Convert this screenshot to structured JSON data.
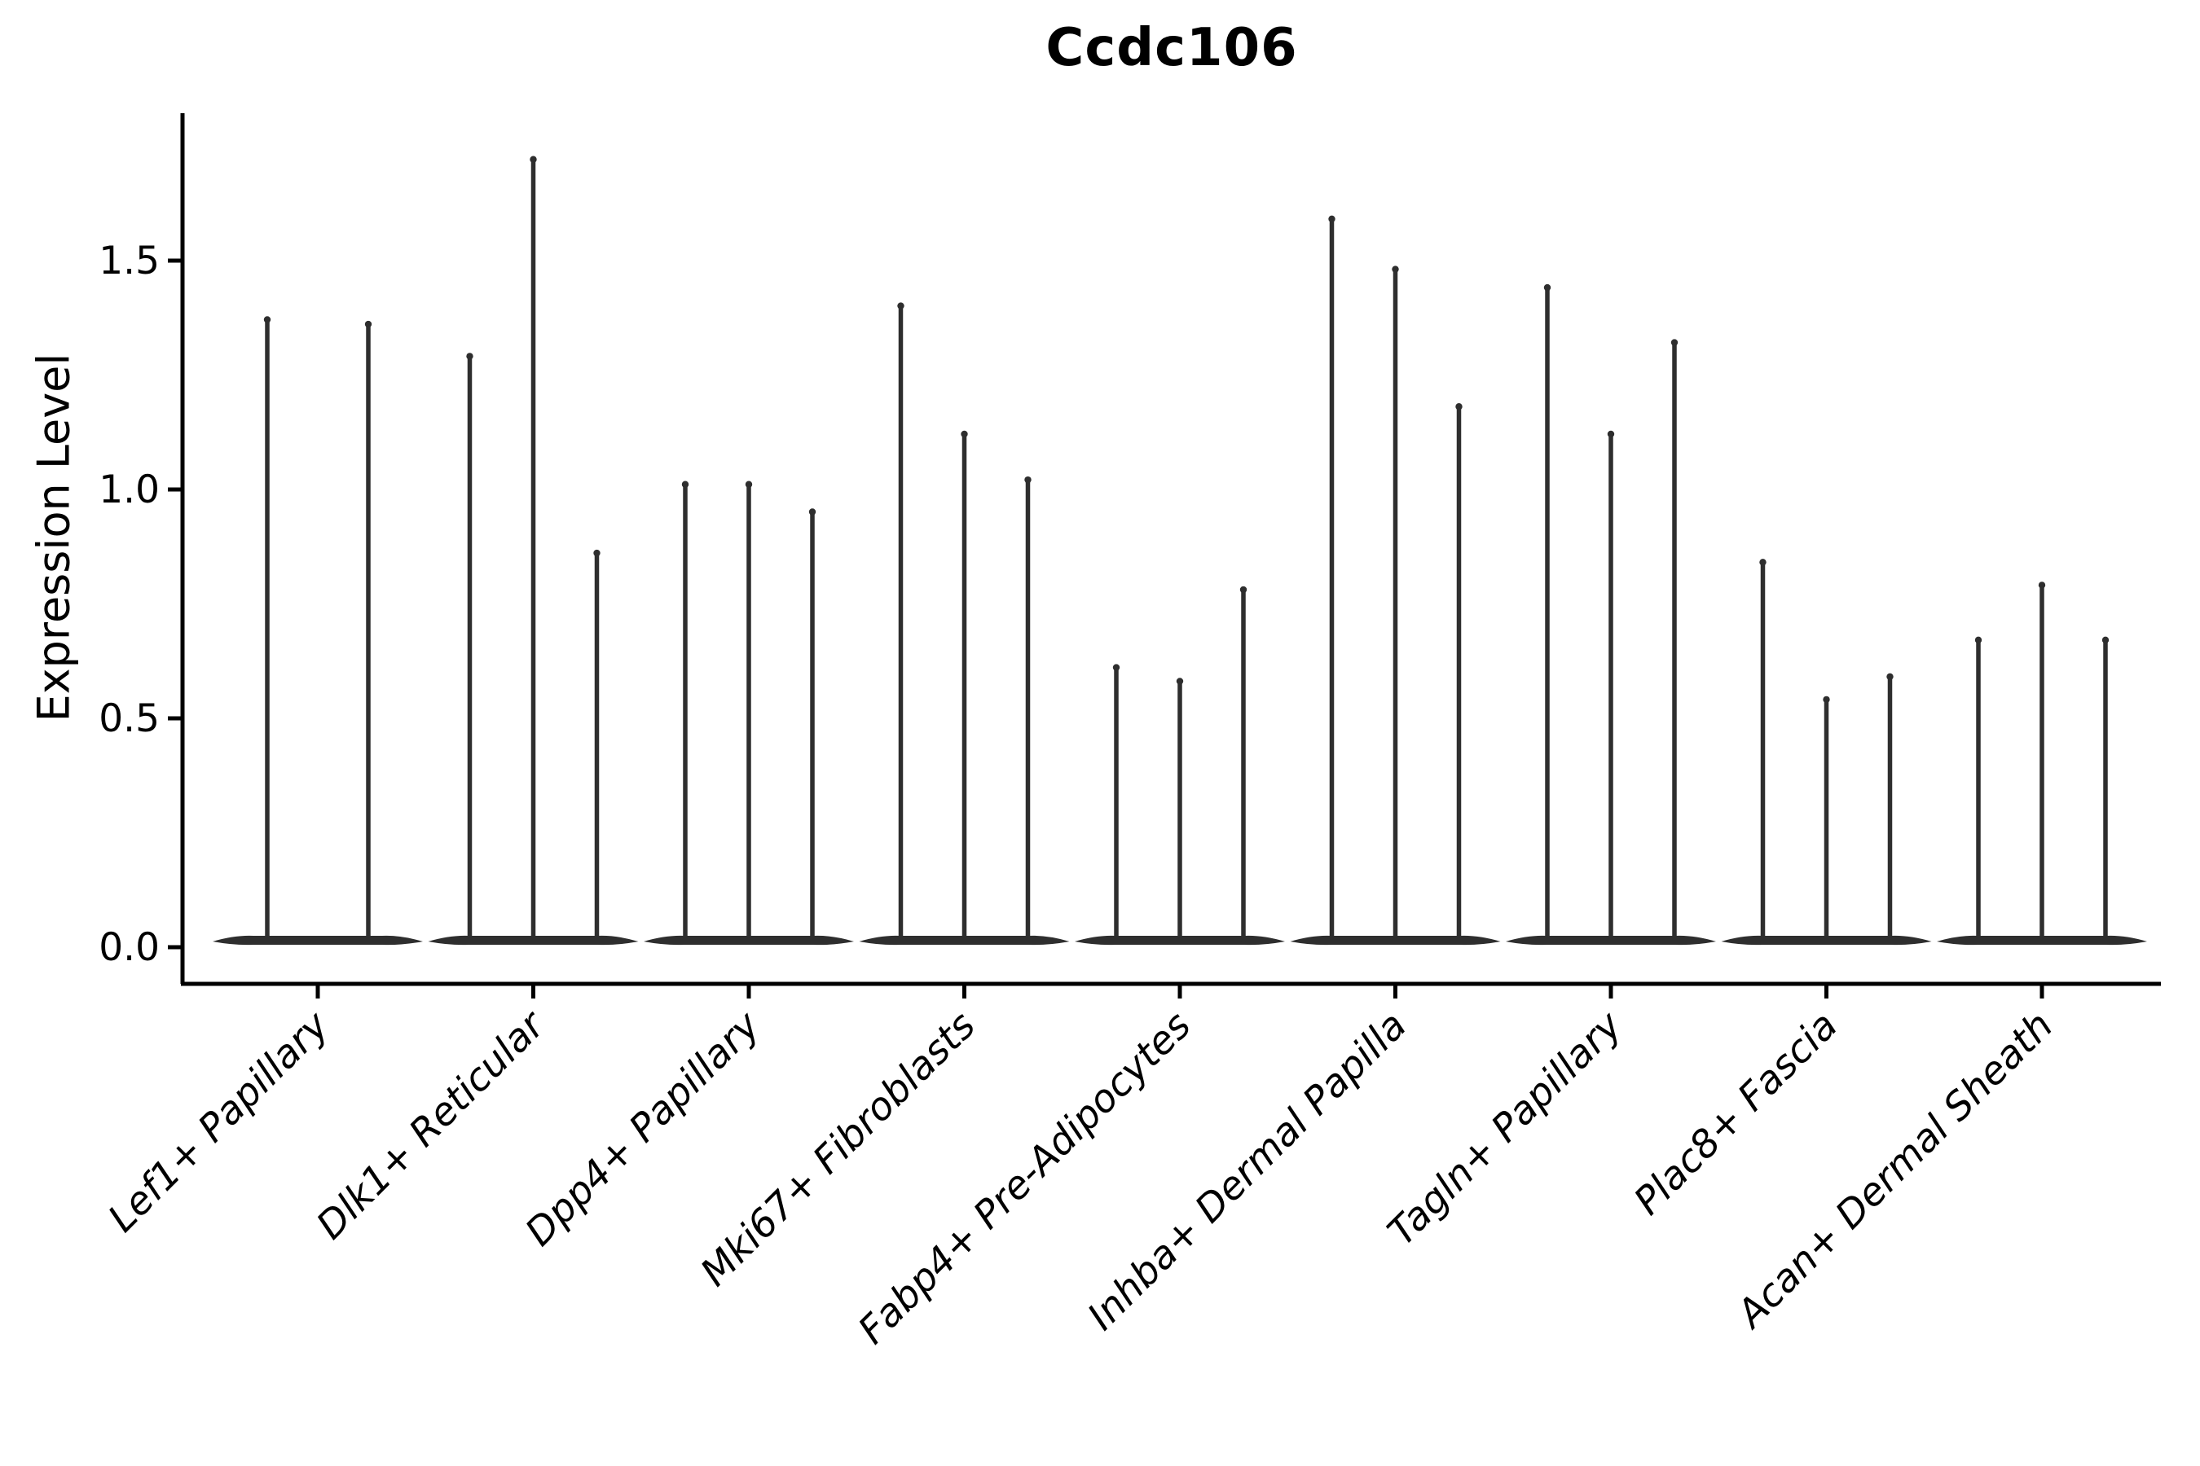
{
  "figure": {
    "title": "Ccdc106",
    "y_axis_label": "Expression Level"
  },
  "chart_data": {
    "type": "violin",
    "title": "Ccdc106",
    "xlabel": "",
    "ylabel": "Expression Level",
    "ylim": [
      -0.08,
      1.82
    ],
    "yticks": [
      0.0,
      0.5,
      1.0,
      1.5
    ],
    "ytick_labels": [
      "0.0",
      "0.5",
      "1.0",
      "1.5"
    ],
    "grid": false,
    "legend": "none",
    "violin_color": "#2e2e2e",
    "axis_color": "#000000",
    "shape_note": "each violin is a flat pancake of density at expression 0 with a hair-thin spike rising to its maximum value",
    "categories": [
      "Lef1+ Papillary",
      "Dlk1+ Reticular",
      "Dpp4+ Papillary",
      "Mki67+ Fibroblasts",
      "Fabp4+ Pre-Adipocytes",
      "Inhba+ Dermal Papilla",
      "Tagln+ Papillary",
      "Plac8+ Fascia",
      "Acan+ Dermal Sheath"
    ],
    "violin_max_values": [
      [
        1.38,
        1.37
      ],
      [
        1.3,
        1.73,
        0.87
      ],
      [
        1.02,
        1.02,
        0.96
      ],
      [
        1.41,
        1.13,
        1.03
      ],
      [
        0.62,
        0.59,
        0.79
      ],
      [
        1.6,
        1.49,
        1.19
      ],
      [
        1.45,
        1.13,
        1.33
      ],
      [
        0.85,
        0.55,
        0.6
      ],
      [
        0.68,
        0.8,
        0.68
      ]
    ]
  }
}
